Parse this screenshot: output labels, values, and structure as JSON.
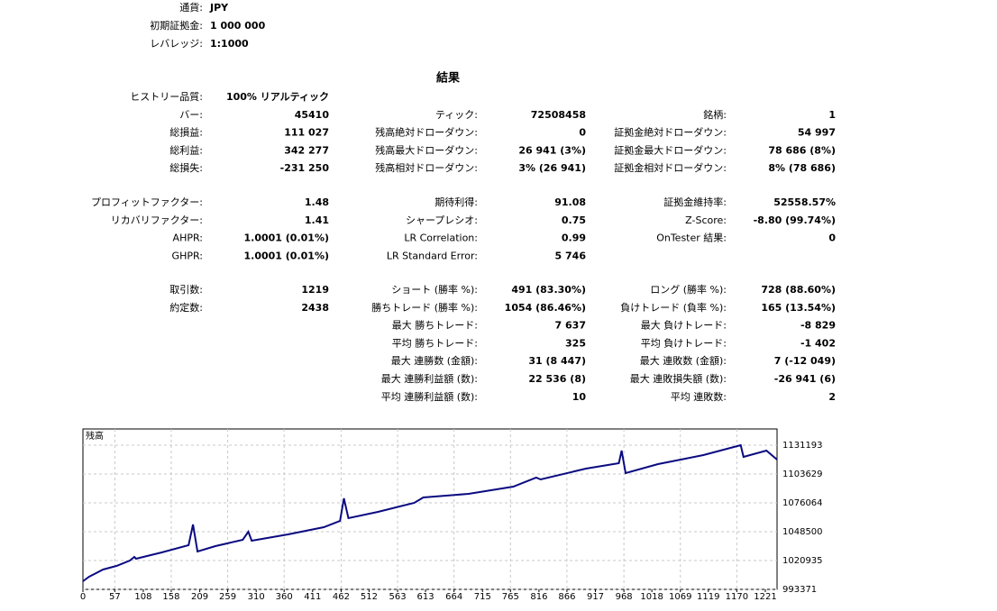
{
  "header": {
    "rows": [
      [
        "通貨:",
        "JPY"
      ],
      [
        "初期証拠金:",
        "1 000 000"
      ],
      [
        "レバレッジ:",
        "1:1000"
      ]
    ]
  },
  "results_title": "結果",
  "stats": [
    [
      [
        "ヒストリー品質:",
        "100% リアルティック",
        null,
        null,
        null,
        null
      ],
      [
        "バー:",
        "45410",
        "ティック:",
        "72508458",
        "銘柄:",
        "1"
      ],
      [
        "総損益:",
        "111 027",
        "残高絶対ドローダウン:",
        "0",
        "証拠金絶対ドローダウン:",
        "54 997"
      ],
      [
        "総利益:",
        "342 277",
        "残高最大ドローダウン:",
        "26 941 (3%)",
        "証拠金最大ドローダウン:",
        "78 686 (8%)"
      ],
      [
        "総損失:",
        "-231 250",
        "残高相対ドローダウン:",
        "3% (26 941)",
        "証拠金相対ドローダウン:",
        "8% (78 686)"
      ]
    ],
    [
      [
        "プロフィットファクター:",
        "1.48",
        "期待利得:",
        "91.08",
        "証拠金維持率:",
        "52558.57%"
      ],
      [
        "リカバリファクター:",
        "1.41",
        "シャープレシオ:",
        "0.75",
        "Z-Score:",
        "-8.80 (99.74%)"
      ],
      [
        "AHPR:",
        "1.0001 (0.01%)",
        "LR Correlation:",
        "0.99",
        "OnTester 結果:",
        "0"
      ],
      [
        "GHPR:",
        "1.0001 (0.01%)",
        "LR Standard Error:",
        "5 746",
        null,
        null
      ]
    ],
    [
      [
        "取引数:",
        "1219",
        "ショート (勝率 %):",
        "491 (83.30%)",
        "ロング (勝率 %):",
        "728 (88.60%)"
      ],
      [
        "約定数:",
        "2438",
        "勝ちトレード (勝率 %):",
        "1054 (86.46%)",
        "負けトレード (負率 %):",
        "165 (13.54%)"
      ],
      [
        null,
        null,
        "最大 勝ちトレード:",
        "7 637",
        "最大 負けトレード:",
        "-8 829"
      ],
      [
        null,
        null,
        "平均 勝ちトレード:",
        "325",
        "平均 負けトレード:",
        "-1 402"
      ],
      [
        null,
        null,
        "最大 連勝数 (金額):",
        "31 (8 447)",
        "最大 連敗数 (金額):",
        "7 (-12 049)"
      ],
      [
        null,
        null,
        "最大 連勝利益額 (数):",
        "22 536 (8)",
        "最大 連敗損失額 (数):",
        "-26 941 (6)"
      ],
      [
        null,
        null,
        "平均 連勝利益額 (数):",
        "10",
        "平均 連敗数:",
        "2"
      ]
    ]
  ],
  "chart_data": {
    "type": "line",
    "title": "残高",
    "color": "#0a0a80",
    "grid": true,
    "x": [
      0,
      11,
      36,
      60,
      84,
      92,
      95,
      141,
      189,
      197,
      205,
      237,
      286,
      296,
      302,
      367,
      431,
      460,
      467,
      475,
      528,
      593,
      609,
      690,
      770,
      811,
      819,
      900,
      959,
      964,
      971,
      1029,
      1110,
      1177,
      1182,
      1223,
      1242
    ],
    "values": [
      1001124,
      1005430,
      1012322,
      1015767,
      1020935,
      1024381,
      1022658,
      1028688,
      1035579,
      1055391,
      1029550,
      1034718,
      1040748,
      1048500,
      1039886,
      1045916,
      1052807,
      1058837,
      1080371,
      1061422,
      1067452,
      1076064,
      1081233,
      1084678,
      1091570,
      1100184,
      1098461,
      1108797,
      1113966,
      1126025,
      1104490,
      1113103,
      1121717,
      1131193,
      1120001,
      1126025,
      1117410
    ],
    "xlim": [
      0,
      1242
    ],
    "ylim": [
      993371,
      1146698
    ],
    "xticks": [
      0,
      57,
      108,
      158,
      209,
      259,
      310,
      360,
      411,
      462,
      512,
      563,
      613,
      664,
      715,
      765,
      816,
      866,
      917,
      968,
      1018,
      1069,
      1119,
      1170,
      1221
    ],
    "yticks": [
      993371,
      1020935,
      1048500,
      1076064,
      1103629,
      1131193
    ]
  }
}
